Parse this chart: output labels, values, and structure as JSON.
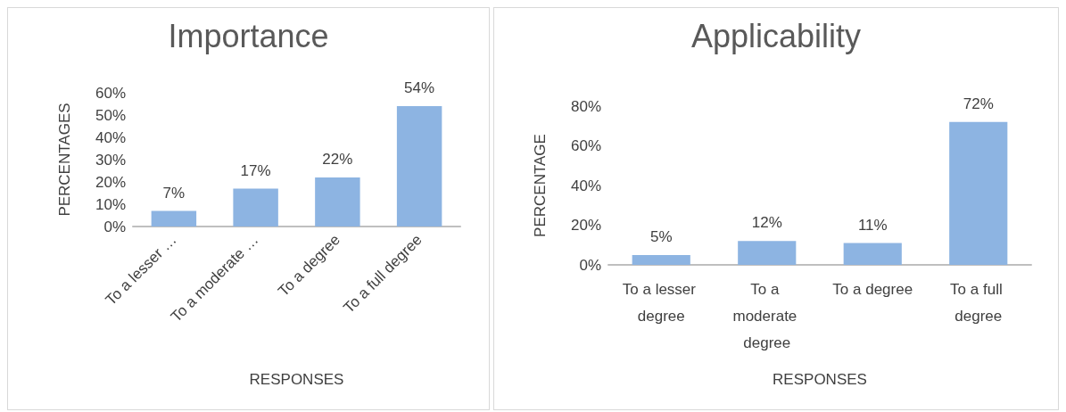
{
  "chart_data": [
    {
      "type": "bar",
      "title": "Importance",
      "xlabel": "RESPONSES",
      "ylabel": "PERCENTAGES",
      "categories": [
        "To a lesser …",
        "To a moderate …",
        "To a degree",
        "To a full degree"
      ],
      "values": [
        7,
        17,
        22,
        54
      ],
      "value_labels": [
        "7%",
        "17%",
        "22%",
        "54%"
      ],
      "color": "#8db4e2",
      "ylim": [
        0,
        60
      ],
      "yticks": [
        {
          "value": 0,
          "label": "0%"
        },
        {
          "value": 10,
          "label": "10%"
        },
        {
          "value": 20,
          "label": "20%"
        },
        {
          "value": 30,
          "label": "30%"
        },
        {
          "value": 40,
          "label": "40%"
        },
        {
          "value": 50,
          "label": "50%"
        },
        {
          "value": 60,
          "label": "60%"
        }
      ],
      "grid": false
    },
    {
      "type": "bar",
      "title": "Applicability",
      "xlabel": "RESPONSES",
      "ylabel": "PERCENTAGE",
      "categories": [
        "To a lesser degree",
        "To a moderate degree",
        "To a degree",
        "To a full degree"
      ],
      "values": [
        5,
        12,
        11,
        72
      ],
      "value_labels": [
        "5%",
        "12%",
        "11%",
        "72%"
      ],
      "color": "#8db4e2",
      "ylim": [
        0,
        80
      ],
      "yticks": [
        {
          "value": 0,
          "label": "0%"
        },
        {
          "value": 20,
          "label": "20%"
        },
        {
          "value": 40,
          "label": "40%"
        },
        {
          "value": 60,
          "label": "60%"
        },
        {
          "value": 80,
          "label": "80%"
        }
      ],
      "grid": false
    }
  ]
}
